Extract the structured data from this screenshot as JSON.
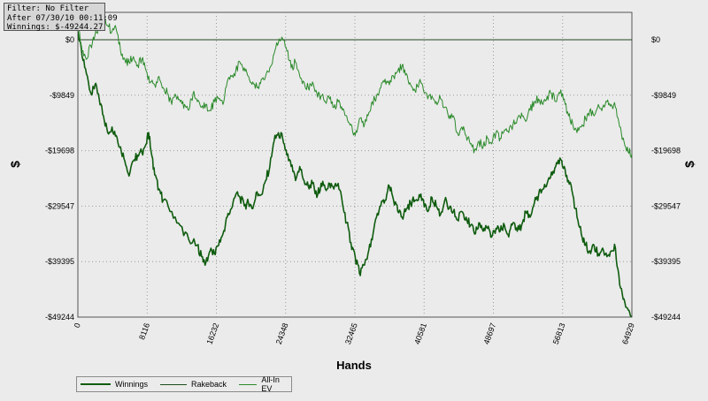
{
  "info_box": {
    "filter": "Filter: No Filter",
    "after": "After 07/30/10 00:11:09",
    "winnings": "Winnings: $-49244.27"
  },
  "colors": {
    "background": "#ebebeb",
    "winnings": "#0f5c0f",
    "rakeback": "#1e4d1e",
    "allin_ev": "#2a8a2a",
    "grid": "#999999"
  },
  "chart_data": {
    "type": "line",
    "title": "",
    "xlabel": "Hands",
    "ylabel": "$",
    "xlim": [
      0,
      64929
    ],
    "ylim": [
      -49244,
      0
    ],
    "x_ticks": [
      "0",
      "8116",
      "16232",
      "24348",
      "32465",
      "40581",
      "48697",
      "56813",
      "64929"
    ],
    "y_ticks": [
      "$0",
      "-$9849",
      "-$19698",
      "-$29547",
      "-$39395",
      "-$49244"
    ],
    "grid": true,
    "legend_position": "bottom-left",
    "series": [
      {
        "name": "Winnings",
        "points": [
          [
            0,
            1500
          ],
          [
            500,
            -3000
          ],
          [
            1000,
            -6000
          ],
          [
            1600,
            -9800
          ],
          [
            2000,
            -8000
          ],
          [
            2500,
            -10500
          ],
          [
            3000,
            -13500
          ],
          [
            3500,
            -16500
          ],
          [
            4000,
            -15500
          ],
          [
            4500,
            -17000
          ],
          [
            5000,
            -19000
          ],
          [
            5500,
            -21500
          ],
          [
            6000,
            -24200
          ],
          [
            6500,
            -21500
          ],
          [
            7000,
            -20500
          ],
          [
            7500,
            -20000
          ],
          [
            8000,
            -18500
          ],
          [
            8300,
            -16500
          ],
          [
            8600,
            -20000
          ],
          [
            9000,
            -24000
          ],
          [
            9500,
            -26500
          ],
          [
            10000,
            -28500
          ],
          [
            11000,
            -30500
          ],
          [
            12000,
            -33000
          ],
          [
            13000,
            -35500
          ],
          [
            14000,
            -36500
          ],
          [
            14500,
            -38500
          ],
          [
            15000,
            -39600
          ],
          [
            15500,
            -37500
          ],
          [
            16000,
            -38000
          ],
          [
            16500,
            -36500
          ],
          [
            17000,
            -34500
          ],
          [
            17500,
            -31500
          ],
          [
            18000,
            -30000
          ],
          [
            18500,
            -27500
          ],
          [
            19000,
            -28000
          ],
          [
            19500,
            -29500
          ],
          [
            20000,
            -29000
          ],
          [
            20500,
            -30000
          ],
          [
            21000,
            -27000
          ],
          [
            21500,
            -27500
          ],
          [
            22000,
            -25000
          ],
          [
            22500,
            -22500
          ],
          [
            23000,
            -18000
          ],
          [
            23500,
            -16500
          ],
          [
            24000,
            -17500
          ],
          [
            24500,
            -20500
          ],
          [
            25000,
            -22500
          ],
          [
            25500,
            -25000
          ],
          [
            26000,
            -22500
          ],
          [
            26500,
            -25000
          ],
          [
            27000,
            -26000
          ],
          [
            27500,
            -25500
          ],
          [
            28000,
            -28000
          ],
          [
            28500,
            -25500
          ],
          [
            29000,
            -26500
          ],
          [
            29500,
            -25500
          ],
          [
            30000,
            -26500
          ],
          [
            30500,
            -25500
          ],
          [
            31000,
            -29000
          ],
          [
            31500,
            -32500
          ],
          [
            32000,
            -36000
          ],
          [
            32500,
            -38500
          ],
          [
            33000,
            -41500
          ],
          [
            33500,
            -40000
          ],
          [
            34000,
            -38000
          ],
          [
            34500,
            -35500
          ],
          [
            35000,
            -31500
          ],
          [
            35500,
            -29500
          ],
          [
            36000,
            -28500
          ],
          [
            36500,
            -26000
          ],
          [
            37000,
            -28500
          ],
          [
            37500,
            -30500
          ],
          [
            38000,
            -31500
          ],
          [
            38500,
            -30000
          ],
          [
            39000,
            -29000
          ],
          [
            39500,
            -28500
          ],
          [
            40000,
            -27500
          ],
          [
            40500,
            -28500
          ],
          [
            41000,
            -30500
          ],
          [
            41500,
            -28000
          ],
          [
            42000,
            -29500
          ],
          [
            42500,
            -31000
          ],
          [
            43000,
            -28500
          ],
          [
            43500,
            -30000
          ],
          [
            44000,
            -30500
          ],
          [
            44500,
            -32000
          ],
          [
            45000,
            -30500
          ],
          [
            45500,
            -31500
          ],
          [
            46000,
            -33000
          ],
          [
            46500,
            -34500
          ],
          [
            47000,
            -32500
          ],
          [
            47500,
            -34000
          ],
          [
            48000,
            -33500
          ],
          [
            48500,
            -35000
          ],
          [
            49000,
            -33500
          ],
          [
            49500,
            -34000
          ],
          [
            50000,
            -33000
          ],
          [
            50500,
            -35000
          ],
          [
            51000,
            -32500
          ],
          [
            51500,
            -34000
          ],
          [
            52000,
            -33000
          ],
          [
            52500,
            -30500
          ],
          [
            53000,
            -31500
          ],
          [
            53500,
            -29000
          ],
          [
            54000,
            -27500
          ],
          [
            54500,
            -26500
          ],
          [
            55000,
            -25500
          ],
          [
            55500,
            -23500
          ],
          [
            56000,
            -22500
          ],
          [
            56500,
            -21000
          ],
          [
            57000,
            -22500
          ],
          [
            57500,
            -25000
          ],
          [
            58000,
            -27500
          ],
          [
            58500,
            -31500
          ],
          [
            59000,
            -34500
          ],
          [
            59500,
            -36500
          ],
          [
            60000,
            -37500
          ],
          [
            60500,
            -36500
          ],
          [
            61000,
            -38000
          ],
          [
            61500,
            -37000
          ],
          [
            62000,
            -38500
          ],
          [
            62500,
            -37500
          ],
          [
            63000,
            -37000
          ],
          [
            63500,
            -43500
          ],
          [
            64000,
            -46000
          ],
          [
            64500,
            -48000
          ],
          [
            64929,
            -49244
          ]
        ]
      },
      {
        "name": "Rakeback",
        "points": [
          [
            0,
            0
          ],
          [
            64929,
            0
          ]
        ]
      },
      {
        "name": "All-In EV",
        "points": [
          [
            0,
            2500
          ],
          [
            500,
            -2000
          ],
          [
            1000,
            -3500
          ],
          [
            1500,
            -1000
          ],
          [
            2000,
            800
          ],
          [
            2500,
            2000
          ],
          [
            3000,
            3500
          ],
          [
            3500,
            2500
          ],
          [
            4000,
            1500
          ],
          [
            4500,
            1800
          ],
          [
            5000,
            -2000
          ],
          [
            5500,
            -3500
          ],
          [
            6000,
            -4000
          ],
          [
            6500,
            -3000
          ],
          [
            7000,
            -4500
          ],
          [
            7500,
            -3500
          ],
          [
            8000,
            -5500
          ],
          [
            8500,
            -7500
          ],
          [
            9000,
            -8000
          ],
          [
            9500,
            -6500
          ],
          [
            10000,
            -8500
          ],
          [
            10500,
            -9500
          ],
          [
            11000,
            -11500
          ],
          [
            11500,
            -10000
          ],
          [
            12000,
            -11000
          ],
          [
            12500,
            -11500
          ],
          [
            13000,
            -12500
          ],
          [
            13500,
            -9500
          ],
          [
            14000,
            -11000
          ],
          [
            14500,
            -12000
          ],
          [
            15000,
            -11500
          ],
          [
            15500,
            -12500
          ],
          [
            16000,
            -11000
          ],
          [
            16500,
            -10500
          ],
          [
            17000,
            -11500
          ],
          [
            17500,
            -7500
          ],
          [
            18000,
            -6500
          ],
          [
            18500,
            -5500
          ],
          [
            19000,
            -4000
          ],
          [
            19500,
            -5000
          ],
          [
            20000,
            -6500
          ],
          [
            20500,
            -7500
          ],
          [
            21000,
            -8500
          ],
          [
            21500,
            -7000
          ],
          [
            22000,
            -6500
          ],
          [
            22500,
            -5000
          ],
          [
            23000,
            -2500
          ],
          [
            23500,
            -500
          ],
          [
            24000,
            200
          ],
          [
            24500,
            -2000
          ],
          [
            25000,
            -5000
          ],
          [
            25500,
            -4000
          ],
          [
            26000,
            -6500
          ],
          [
            26500,
            -7500
          ],
          [
            27000,
            -8500
          ],
          [
            27500,
            -7500
          ],
          [
            28000,
            -9500
          ],
          [
            28500,
            -10000
          ],
          [
            29000,
            -11000
          ],
          [
            29500,
            -10500
          ],
          [
            30000,
            -12000
          ],
          [
            30500,
            -11000
          ],
          [
            31000,
            -12500
          ],
          [
            31500,
            -13500
          ],
          [
            32000,
            -15000
          ],
          [
            32500,
            -17000
          ],
          [
            33000,
            -14000
          ],
          [
            33500,
            -15500
          ],
          [
            34000,
            -13500
          ],
          [
            34500,
            -11000
          ],
          [
            35000,
            -10000
          ],
          [
            35500,
            -8500
          ],
          [
            36000,
            -7000
          ],
          [
            36500,
            -8000
          ],
          [
            37000,
            -6500
          ],
          [
            37500,
            -5500
          ],
          [
            38000,
            -4500
          ],
          [
            38500,
            -6000
          ],
          [
            39000,
            -8000
          ],
          [
            39500,
            -9000
          ],
          [
            40000,
            -7500
          ],
          [
            40500,
            -9000
          ],
          [
            41000,
            -10500
          ],
          [
            41500,
            -10000
          ],
          [
            42000,
            -11000
          ],
          [
            42500,
            -10500
          ],
          [
            43000,
            -12000
          ],
          [
            43500,
            -14000
          ],
          [
            44000,
            -13500
          ],
          [
            44500,
            -16500
          ],
          [
            45000,
            -15500
          ],
          [
            45500,
            -17000
          ],
          [
            46000,
            -18500
          ],
          [
            46500,
            -19500
          ],
          [
            47000,
            -18000
          ],
          [
            47500,
            -19000
          ],
          [
            48000,
            -17500
          ],
          [
            48500,
            -18500
          ],
          [
            49000,
            -16500
          ],
          [
            49500,
            -17500
          ],
          [
            50000,
            -16000
          ],
          [
            50500,
            -16500
          ],
          [
            51000,
            -15000
          ],
          [
            51500,
            -14000
          ],
          [
            52000,
            -13000
          ],
          [
            52500,
            -14500
          ],
          [
            53000,
            -12500
          ],
          [
            53500,
            -11000
          ],
          [
            54000,
            -10500
          ],
          [
            54500,
            -11500
          ],
          [
            55000,
            -10000
          ],
          [
            55500,
            -9500
          ],
          [
            56000,
            -11000
          ],
          [
            56500,
            -9500
          ],
          [
            57000,
            -10500
          ],
          [
            57500,
            -13500
          ],
          [
            58000,
            -15000
          ],
          [
            58500,
            -16500
          ],
          [
            59000,
            -15500
          ],
          [
            59500,
            -14000
          ],
          [
            60000,
            -12500
          ],
          [
            60500,
            -13500
          ],
          [
            61000,
            -11500
          ],
          [
            61500,
            -12000
          ],
          [
            62000,
            -11000
          ],
          [
            62500,
            -11500
          ],
          [
            63000,
            -12000
          ],
          [
            63500,
            -15500
          ],
          [
            64000,
            -18000
          ],
          [
            64500,
            -20000
          ],
          [
            64929,
            -20200
          ]
        ]
      }
    ]
  }
}
